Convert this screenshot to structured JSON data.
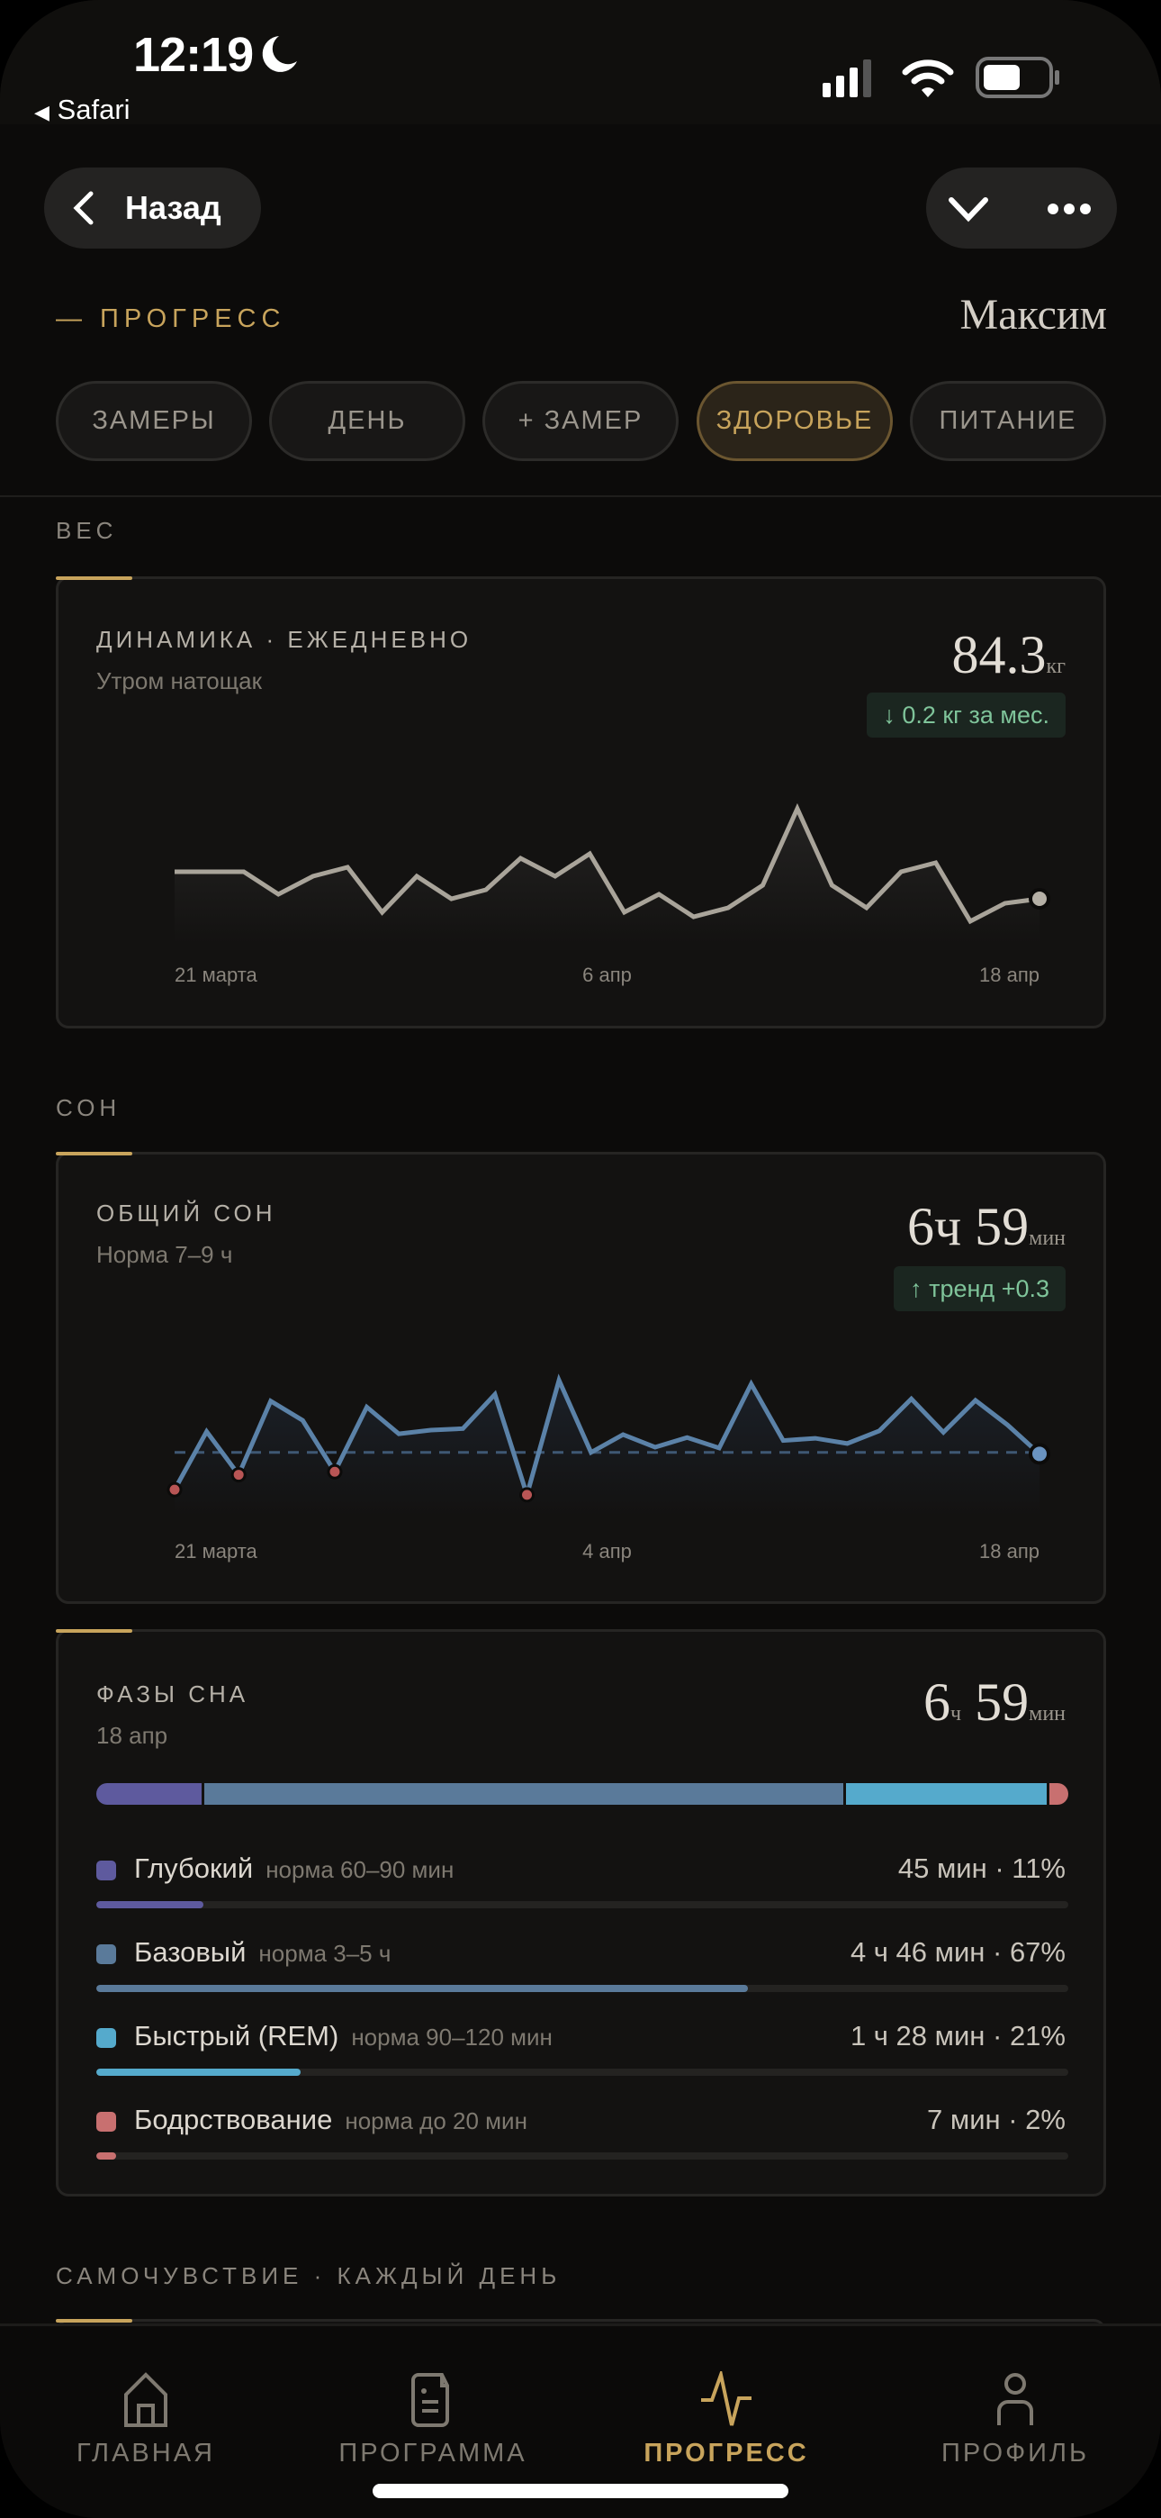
{
  "status_bar": {
    "time": "12:19",
    "back_app": "Safari",
    "icons": [
      "moon-icon",
      "signal-icon",
      "wifi-icon",
      "battery-icon"
    ]
  },
  "header": {
    "back_label": "Назад",
    "section_label": "— ПРОГРЕСС",
    "user_name": "Максим"
  },
  "tabs": [
    {
      "label": "ЗАМЕРЫ",
      "active": false
    },
    {
      "label": "ДЕНЬ",
      "active": false
    },
    {
      "label": "+ ЗАМЕР",
      "active": false
    },
    {
      "label": "ЗДОРОВЬЕ",
      "active": true
    },
    {
      "label": "ПИТАНИЕ",
      "active": false
    }
  ],
  "weight": {
    "section": "ВЕС",
    "title": "ДИНАМИКА · ЕЖЕДНЕВНО",
    "subtitle": "Утром натощак",
    "value": "84.3",
    "unit": "кг",
    "badge": "↓ 0.2 кг за мес.",
    "chart_data": {
      "type": "area",
      "x_labels": [
        "21 марта",
        "6 апр",
        "18 апр"
      ],
      "ylim": [
        83.8,
        86.0
      ],
      "color": "#a9a49a",
      "values": [
        84.6,
        84.6,
        84.6,
        84.35,
        84.55,
        84.65,
        84.15,
        84.55,
        84.3,
        84.4,
        84.75,
        84.55,
        84.8,
        84.15,
        84.35,
        84.1,
        84.2,
        84.45,
        85.3,
        84.45,
        84.2,
        84.6,
        84.7,
        84.05,
        84.25,
        84.3
      ]
    }
  },
  "sleep": {
    "section": "СОН",
    "title": "ОБЩИЙ СОН",
    "subtitle": "Норма 7–9 ч",
    "value_h": "6ч",
    "value_m": "59",
    "unit": "мин",
    "badge": "↑ тренд +0.3",
    "chart_data": {
      "type": "line",
      "x_labels": [
        "21 марта",
        "4 апр",
        "18 апр"
      ],
      "ylim": [
        6.15,
        8.45
      ],
      "norm_line": 7,
      "color": "#5b82a8",
      "below_norm_color": "#b85555",
      "values": [
        6.5,
        7.28,
        6.7,
        7.69,
        7.43,
        6.74,
        7.61,
        7.25,
        7.3,
        7.32,
        7.78,
        6.43,
        7.97,
        7.0,
        7.24,
        7.07,
        7.2,
        7.06,
        7.92,
        7.16,
        7.19,
        7.12,
        7.29,
        7.72,
        7.27,
        7.7,
        7.37,
        6.98
      ]
    }
  },
  "phases": {
    "title": "ФАЗЫ СНА",
    "date": "18 апр",
    "value_h": "6",
    "unit_h": "ч",
    "value_m": "59",
    "unit_m": "мин",
    "items": [
      {
        "name": "Глубокий",
        "norm": "норма 60–90 мин",
        "value": "45 мин · 11%",
        "percent": 11,
        "color": "#5e5a9e"
      },
      {
        "name": "Базовый",
        "norm": "норма 3–5 ч",
        "value": "4 ч 46 мин · 67%",
        "percent": 67,
        "color": "#5a7a9a"
      },
      {
        "name": "Быстрый (REM)",
        "norm": "норма 90–120 мин",
        "value": "1 ч 28 мин · 21%",
        "percent": 21,
        "color": "#55aacc"
      },
      {
        "name": "Бодрствование",
        "norm": "норма до 20 мин",
        "value": "7 мин · 2%",
        "percent": 2,
        "color": "#c87070"
      }
    ]
  },
  "wellbeing": {
    "section": "САМОЧУВСТВИЕ · КАЖДЫЙ ДЕНЬ"
  },
  "nav": [
    {
      "label": "ГЛАВНАЯ",
      "icon": "home-icon"
    },
    {
      "label": "ПРОГРАММА",
      "icon": "document-icon"
    },
    {
      "label": "ПРОГРЕСС",
      "icon": "pulse-icon",
      "active": true
    },
    {
      "label": "ПРОФИЛЬ",
      "icon": "person-icon"
    }
  ],
  "colors": {
    "accent": "#c8a45c",
    "positive": "#7fc49a",
    "background": "#0c0b0a"
  }
}
